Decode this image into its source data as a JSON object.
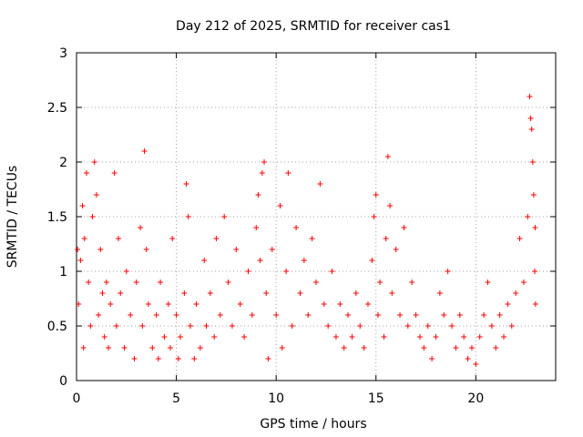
{
  "chart_data": {
    "type": "scatter",
    "title": "Day 212 of 2025, SRMTID for receiver cas1",
    "xlabel": "GPS time / hours",
    "ylabel": "SRMTID / TECUs",
    "xlim": [
      0,
      24
    ],
    "ylim": [
      0,
      3
    ],
    "xticks": [
      0,
      5,
      10,
      15,
      20
    ],
    "xtick_labels": [
      "0",
      "5",
      "10",
      "15",
      "20"
    ],
    "yticks": [
      0,
      0.5,
      1,
      1.5,
      2,
      2.5,
      3
    ],
    "ytick_labels": [
      "0",
      "0.5",
      "1",
      "1.5",
      "2",
      "2.5",
      "3"
    ],
    "grid": true,
    "marker": "+",
    "color": "#ff0000",
    "series": [
      {
        "name": "SRMTID",
        "points": [
          [
            0.05,
            1.2
          ],
          [
            0.1,
            0.7
          ],
          [
            0.2,
            1.1
          ],
          [
            0.3,
            1.6
          ],
          [
            0.35,
            0.3
          ],
          [
            0.4,
            1.3
          ],
          [
            0.5,
            1.9
          ],
          [
            0.6,
            0.9
          ],
          [
            0.7,
            0.5
          ],
          [
            0.8,
            1.5
          ],
          [
            0.9,
            2.0
          ],
          [
            1.0,
            1.7
          ],
          [
            1.1,
            0.6
          ],
          [
            1.2,
            1.2
          ],
          [
            1.3,
            0.8
          ],
          [
            1.4,
            0.4
          ],
          [
            1.5,
            0.9
          ],
          [
            1.6,
            0.3
          ],
          [
            1.7,
            0.7
          ],
          [
            1.9,
            1.9
          ],
          [
            2.0,
            0.5
          ],
          [
            2.1,
            1.3
          ],
          [
            2.2,
            0.8
          ],
          [
            2.4,
            0.3
          ],
          [
            2.5,
            1.0
          ],
          [
            2.7,
            0.6
          ],
          [
            2.9,
            0.2
          ],
          [
            3.0,
            0.9
          ],
          [
            3.2,
            1.4
          ],
          [
            3.3,
            0.5
          ],
          [
            3.4,
            2.1
          ],
          [
            3.5,
            1.2
          ],
          [
            3.6,
            0.7
          ],
          [
            3.8,
            0.3
          ],
          [
            4.0,
            0.6
          ],
          [
            4.1,
            0.2
          ],
          [
            4.2,
            0.9
          ],
          [
            4.4,
            0.4
          ],
          [
            4.6,
            0.7
          ],
          [
            4.7,
            0.3
          ],
          [
            4.8,
            1.3
          ],
          [
            5.0,
            0.6
          ],
          [
            5.1,
            0.2
          ],
          [
            5.2,
            0.4
          ],
          [
            5.4,
            0.8
          ],
          [
            5.5,
            1.8
          ],
          [
            5.6,
            1.5
          ],
          [
            5.7,
            0.5
          ],
          [
            5.9,
            0.2
          ],
          [
            6.0,
            0.7
          ],
          [
            6.2,
            0.3
          ],
          [
            6.4,
            1.1
          ],
          [
            6.5,
            0.5
          ],
          [
            6.7,
            0.8
          ],
          [
            6.9,
            0.4
          ],
          [
            7.0,
            1.3
          ],
          [
            7.2,
            0.6
          ],
          [
            7.4,
            1.5
          ],
          [
            7.6,
            0.9
          ],
          [
            7.8,
            0.5
          ],
          [
            8.0,
            1.2
          ],
          [
            8.2,
            0.7
          ],
          [
            8.4,
            0.4
          ],
          [
            8.6,
            1.0
          ],
          [
            8.8,
            0.6
          ],
          [
            9.0,
            1.4
          ],
          [
            9.1,
            1.7
          ],
          [
            9.2,
            1.1
          ],
          [
            9.3,
            1.9
          ],
          [
            9.4,
            2.0
          ],
          [
            9.5,
            0.8
          ],
          [
            9.6,
            0.2
          ],
          [
            9.8,
            1.2
          ],
          [
            10.0,
            0.6
          ],
          [
            10.2,
            1.6
          ],
          [
            10.3,
            0.3
          ],
          [
            10.5,
            1.0
          ],
          [
            10.6,
            1.9
          ],
          [
            10.8,
            0.5
          ],
          [
            11.0,
            1.4
          ],
          [
            11.2,
            0.8
          ],
          [
            11.4,
            1.1
          ],
          [
            11.6,
            0.6
          ],
          [
            11.8,
            1.3
          ],
          [
            12.0,
            0.9
          ],
          [
            12.2,
            1.8
          ],
          [
            12.4,
            0.7
          ],
          [
            12.6,
            0.5
          ],
          [
            12.8,
            1.0
          ],
          [
            13.0,
            0.4
          ],
          [
            13.2,
            0.7
          ],
          [
            13.4,
            0.3
          ],
          [
            13.6,
            0.6
          ],
          [
            13.8,
            0.4
          ],
          [
            14.0,
            0.8
          ],
          [
            14.2,
            0.5
          ],
          [
            14.4,
            0.3
          ],
          [
            14.6,
            0.7
          ],
          [
            14.8,
            1.1
          ],
          [
            14.9,
            1.5
          ],
          [
            15.0,
            1.7
          ],
          [
            15.1,
            0.6
          ],
          [
            15.2,
            0.9
          ],
          [
            15.4,
            0.4
          ],
          [
            15.5,
            1.3
          ],
          [
            15.6,
            2.05
          ],
          [
            15.7,
            1.6
          ],
          [
            15.8,
            0.8
          ],
          [
            16.0,
            1.2
          ],
          [
            16.2,
            0.6
          ],
          [
            16.4,
            1.4
          ],
          [
            16.6,
            0.5
          ],
          [
            16.8,
            0.9
          ],
          [
            17.0,
            0.6
          ],
          [
            17.2,
            0.4
          ],
          [
            17.4,
            0.3
          ],
          [
            17.6,
            0.5
          ],
          [
            17.8,
            0.2
          ],
          [
            18.0,
            0.4
          ],
          [
            18.2,
            0.8
          ],
          [
            18.4,
            0.6
          ],
          [
            18.6,
            1.0
          ],
          [
            18.8,
            0.5
          ],
          [
            19.0,
            0.3
          ],
          [
            19.2,
            0.6
          ],
          [
            19.4,
            0.4
          ],
          [
            19.6,
            0.2
          ],
          [
            19.8,
            0.3
          ],
          [
            20.0,
            0.15
          ],
          [
            20.2,
            0.4
          ],
          [
            20.4,
            0.6
          ],
          [
            20.6,
            0.9
          ],
          [
            20.8,
            0.5
          ],
          [
            21.0,
            0.3
          ],
          [
            21.2,
            0.6
          ],
          [
            21.4,
            0.4
          ],
          [
            21.6,
            0.7
          ],
          [
            21.8,
            0.5
          ],
          [
            22.0,
            0.8
          ],
          [
            22.2,
            1.3
          ],
          [
            22.4,
            0.9
          ],
          [
            22.6,
            1.5
          ],
          [
            22.7,
            2.6
          ],
          [
            22.75,
            2.4
          ],
          [
            22.8,
            2.3
          ],
          [
            22.85,
            2.0
          ],
          [
            22.9,
            1.7
          ],
          [
            22.95,
            1.0
          ],
          [
            22.97,
            1.4
          ],
          [
            22.99,
            0.7
          ]
        ]
      }
    ]
  }
}
